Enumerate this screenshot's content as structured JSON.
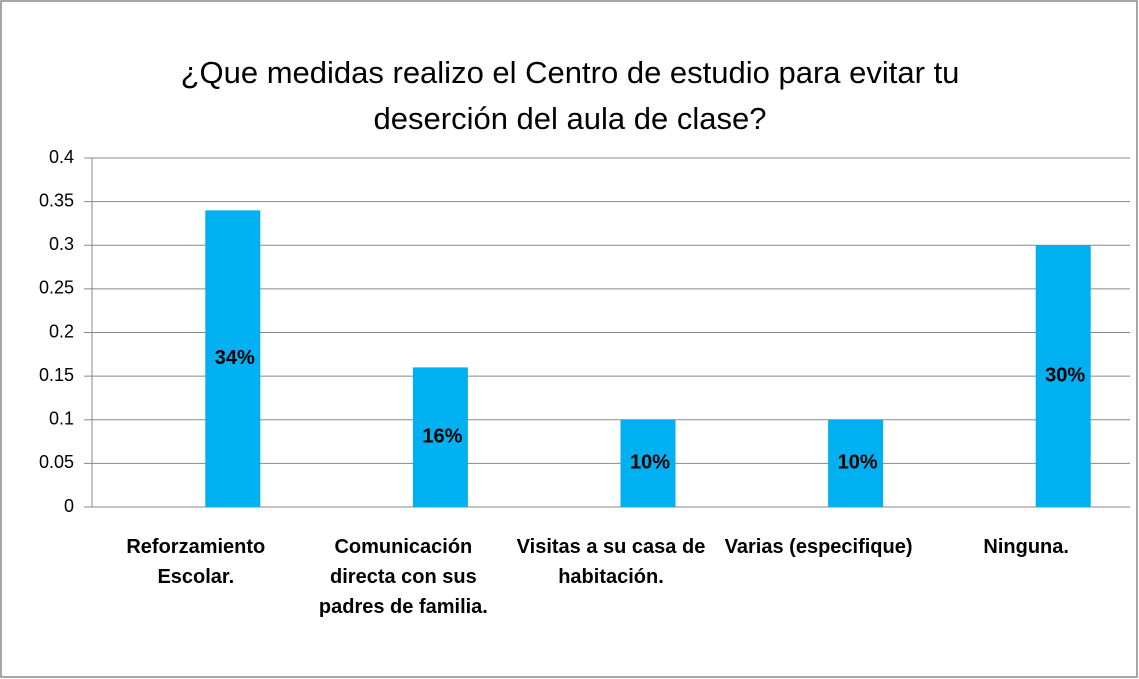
{
  "chart_data": {
    "type": "bar",
    "title": "¿Que medidas realizo el Centro de estudio para evitar tu deserción del aula de clase?",
    "categories": [
      "Reforzamiento Escolar.",
      "Comunicación directa con sus padres de familia.",
      "Visitas a su casa de habitación.",
      "Varias (especifique)",
      "Ninguna."
    ],
    "values": [
      0.34,
      0.16,
      0.1,
      0.1,
      0.3
    ],
    "value_labels": [
      "34%",
      "16%",
      "10%",
      "10%",
      "30%"
    ],
    "color": "#00b0f0",
    "ylim": [
      0,
      0.4
    ],
    "yticks": [
      0,
      0.05,
      0.1,
      0.15,
      0.2,
      0.25,
      0.3,
      0.35,
      0.4
    ],
    "grid": true
  }
}
